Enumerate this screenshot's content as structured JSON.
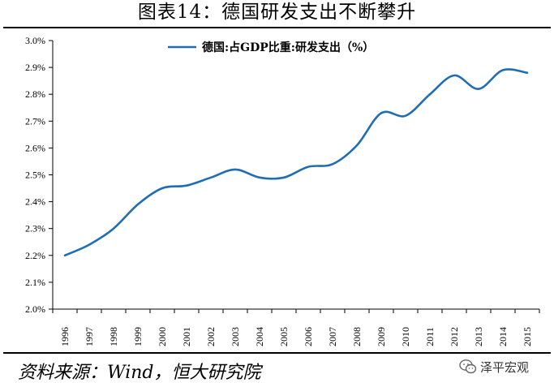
{
  "header": {
    "title": "图表14：德国研发支出不断攀升"
  },
  "footer": {
    "source": "资料来源：Wind，恒大研究院",
    "watermark": "泽平宏观"
  },
  "chart_data": {
    "type": "line",
    "title": "",
    "xlabel": "",
    "ylabel": "",
    "categories": [
      "1996",
      "1997",
      "1998",
      "1999",
      "2000",
      "2001",
      "2002",
      "2003",
      "2004",
      "2005",
      "2006",
      "2007",
      "2008",
      "2009",
      "2010",
      "2011",
      "2012",
      "2013",
      "2014",
      "2015"
    ],
    "series": [
      {
        "name": "德国:占GDP比重:研发支出（%）",
        "values": [
          2.2,
          2.24,
          2.3,
          2.39,
          2.45,
          2.46,
          2.49,
          2.52,
          2.49,
          2.49,
          2.53,
          2.54,
          2.61,
          2.73,
          2.72,
          2.8,
          2.87,
          2.82,
          2.89,
          2.88
        ]
      }
    ],
    "ylim": [
      2.0,
      3.0
    ],
    "yticks": [
      "2.0%",
      "2.1%",
      "2.2%",
      "2.3%",
      "2.4%",
      "2.5%",
      "2.6%",
      "2.7%",
      "2.8%",
      "2.9%",
      "3.0%"
    ],
    "grid": false,
    "legend": "top",
    "line_color": "#1f6db3"
  }
}
